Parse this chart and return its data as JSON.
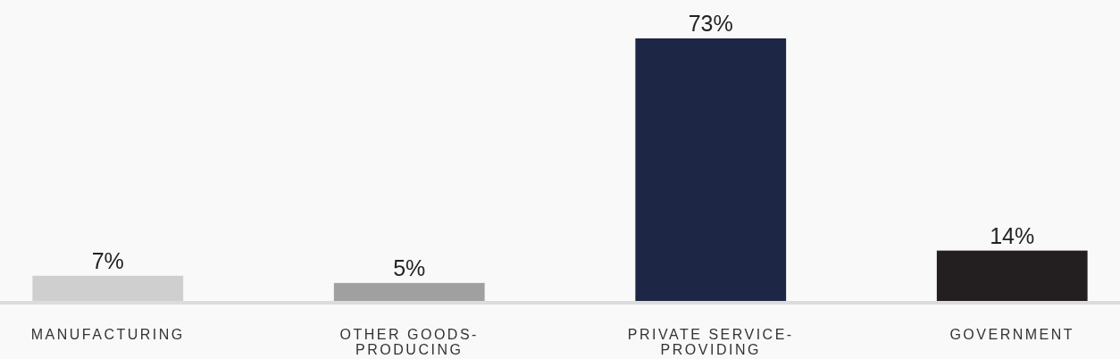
{
  "chart_data": {
    "type": "bar",
    "categories": [
      "MANUFACTURING",
      "OTHER GOODS-PRODUCING",
      "PRIVATE SERVICE-PROVIDING",
      "GOVERNMENT"
    ],
    "values": [
      7,
      5,
      73,
      14
    ],
    "colors": [
      "#cfcfcf",
      "#a0a0a0",
      "#1e2645",
      "#231f20"
    ],
    "value_labels": [
      "7%",
      "5%",
      "73%",
      "14%"
    ]
  }
}
